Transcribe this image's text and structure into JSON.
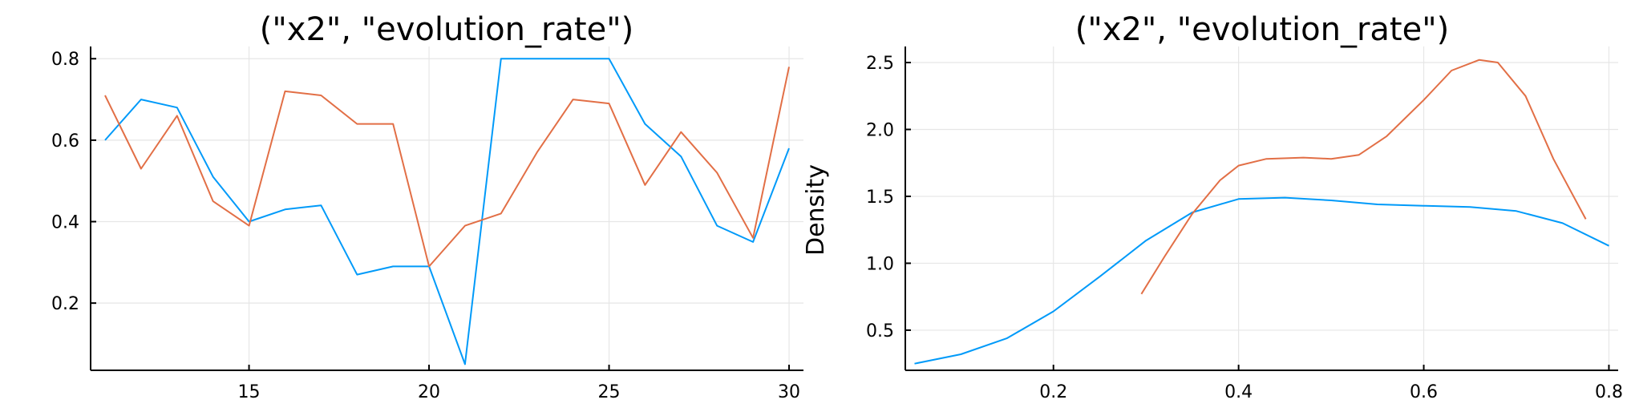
{
  "chart_data": [
    {
      "type": "line",
      "title": "(\"x2\", \"evolution_rate\")",
      "ylabel": "",
      "xlim": [
        10.6,
        30.4
      ],
      "ylim": [
        0.035,
        0.83
      ],
      "xticks": [
        15,
        20,
        25,
        30
      ],
      "xtick_labels": [
        "15",
        "20",
        "25",
        "30"
      ],
      "yticks": [
        0.2,
        0.4,
        0.6,
        0.8
      ],
      "ytick_labels": [
        "0.2",
        "0.4",
        "0.6",
        "0.8"
      ],
      "grid": true,
      "colors": [
        "#009af9",
        "#e26f46"
      ],
      "x": [
        11,
        12,
        13,
        14,
        15,
        16,
        17,
        18,
        19,
        20,
        21,
        22,
        23,
        24,
        25,
        26,
        27,
        28,
        29,
        30
      ],
      "series": [
        {
          "values": [
            0.6,
            0.7,
            0.68,
            0.51,
            0.4,
            0.43,
            0.44,
            0.27,
            0.29,
            0.29,
            0.05,
            0.8,
            0.8,
            0.8,
            0.8,
            0.64,
            0.56,
            0.39,
            0.35,
            0.58
          ]
        },
        {
          "values": [
            0.71,
            0.53,
            0.66,
            0.45,
            0.39,
            0.72,
            0.71,
            0.64,
            0.64,
            0.29,
            0.39,
            0.42,
            0.57,
            0.7,
            0.69,
            0.49,
            0.62,
            0.52,
            0.36,
            0.78
          ]
        }
      ]
    },
    {
      "type": "line",
      "title": "(\"x2\", \"evolution_rate\")",
      "ylabel": "Density",
      "xlim": [
        0.04,
        0.81
      ],
      "ylim": [
        0.2,
        2.62
      ],
      "xticks": [
        0.2,
        0.4,
        0.6,
        0.8
      ],
      "xtick_labels": [
        "0.2",
        "0.4",
        "0.6",
        "0.8"
      ],
      "yticks": [
        0.5,
        1.0,
        1.5,
        2.0,
        2.5
      ],
      "ytick_labels": [
        "0.5",
        "1.0",
        "1.5",
        "2.0",
        "2.5"
      ],
      "grid": true,
      "colors": [
        "#009af9",
        "#e26f46"
      ],
      "series": [
        {
          "x": [
            0.05,
            0.1,
            0.15,
            0.2,
            0.25,
            0.3,
            0.35,
            0.4,
            0.45,
            0.5,
            0.55,
            0.6,
            0.65,
            0.7,
            0.75,
            0.8
          ],
          "values": [
            0.25,
            0.32,
            0.44,
            0.64,
            0.9,
            1.17,
            1.38,
            1.48,
            1.49,
            1.47,
            1.44,
            1.43,
            1.42,
            1.39,
            1.3,
            1.13
          ]
        },
        {
          "x": [
            0.295,
            0.32,
            0.35,
            0.38,
            0.4,
            0.43,
            0.47,
            0.5,
            0.53,
            0.56,
            0.6,
            0.63,
            0.66,
            0.68,
            0.71,
            0.74,
            0.775
          ],
          "values": [
            0.77,
            1.05,
            1.37,
            1.62,
            1.73,
            1.78,
            1.79,
            1.78,
            1.81,
            1.95,
            2.22,
            2.44,
            2.52,
            2.5,
            2.25,
            1.78,
            1.33
          ]
        }
      ]
    }
  ]
}
